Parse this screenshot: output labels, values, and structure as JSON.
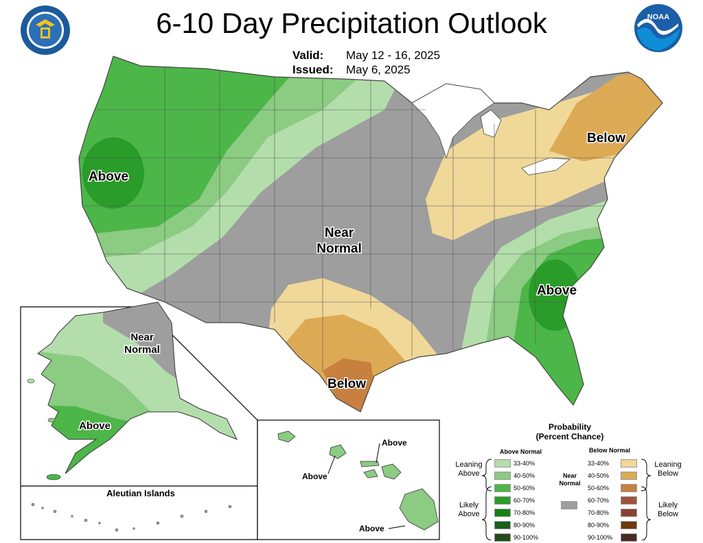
{
  "header": {
    "title": "6-10 Day Precipitation Outlook",
    "valid_label": "Valid:",
    "valid_value": "May 12 - 16, 2025",
    "issued_label": "Issued:",
    "issued_value": "May 6, 2025"
  },
  "logos": {
    "commerce_seal_text": "DEPARTMENT OF COMMERCE · UNITED STATES OF AMERICA",
    "noaa_text": "NOAA"
  },
  "map_labels": {
    "west_above": "Above",
    "central_near_normal_1": "Near",
    "central_near_normal_2": "Normal",
    "northeast_below": "Below",
    "southeast_above": "Above",
    "texas_below": "Below",
    "alaska_near_1": "Near",
    "alaska_near_2": "Normal",
    "alaska_above": "Above",
    "aleutian_title": "Aleutian Islands",
    "hawaii_above_1": "Above",
    "hawaii_above_2": "Above",
    "hawaii_above_3": "Above"
  },
  "legend": {
    "title_1": "Probability",
    "title_2": "(Percent Chance)",
    "above_header": "Above Normal",
    "below_header": "Below Normal",
    "near_label_1": "Near",
    "near_label_2": "Normal",
    "leaning_above_1": "Leaning",
    "leaning_above_2": "Above",
    "likely_above_1": "Likely",
    "likely_above_2": "Above",
    "leaning_below_1": "Leaning",
    "leaning_below_2": "Below",
    "likely_below_1": "Likely",
    "likely_below_2": "Below",
    "above_rows": [
      {
        "label": "33-40%",
        "color": "#b3deab"
      },
      {
        "label": "40-50%",
        "color": "#8bcc82"
      },
      {
        "label": "50-60%",
        "color": "#4cb648"
      },
      {
        "label": "60-70%",
        "color": "#2a9c2a"
      },
      {
        "label": "70-80%",
        "color": "#168016"
      },
      {
        "label": "80-90%",
        "color": "#1b5e1b"
      },
      {
        "label": "90-100%",
        "color": "#244a18"
      }
    ],
    "below_rows": [
      {
        "label": "33-40%",
        "color": "#f0d899"
      },
      {
        "label": "40-50%",
        "color": "#dcaa55"
      },
      {
        "label": "50-60%",
        "color": "#c8803f"
      },
      {
        "label": "60-70%",
        "color": "#a0523d"
      },
      {
        "label": "70-80%",
        "color": "#8c4034"
      },
      {
        "label": "80-90%",
        "color": "#6e3810"
      },
      {
        "label": "90-100%",
        "color": "#4a2a22"
      }
    ],
    "near_color": "#9e9e9e"
  }
}
